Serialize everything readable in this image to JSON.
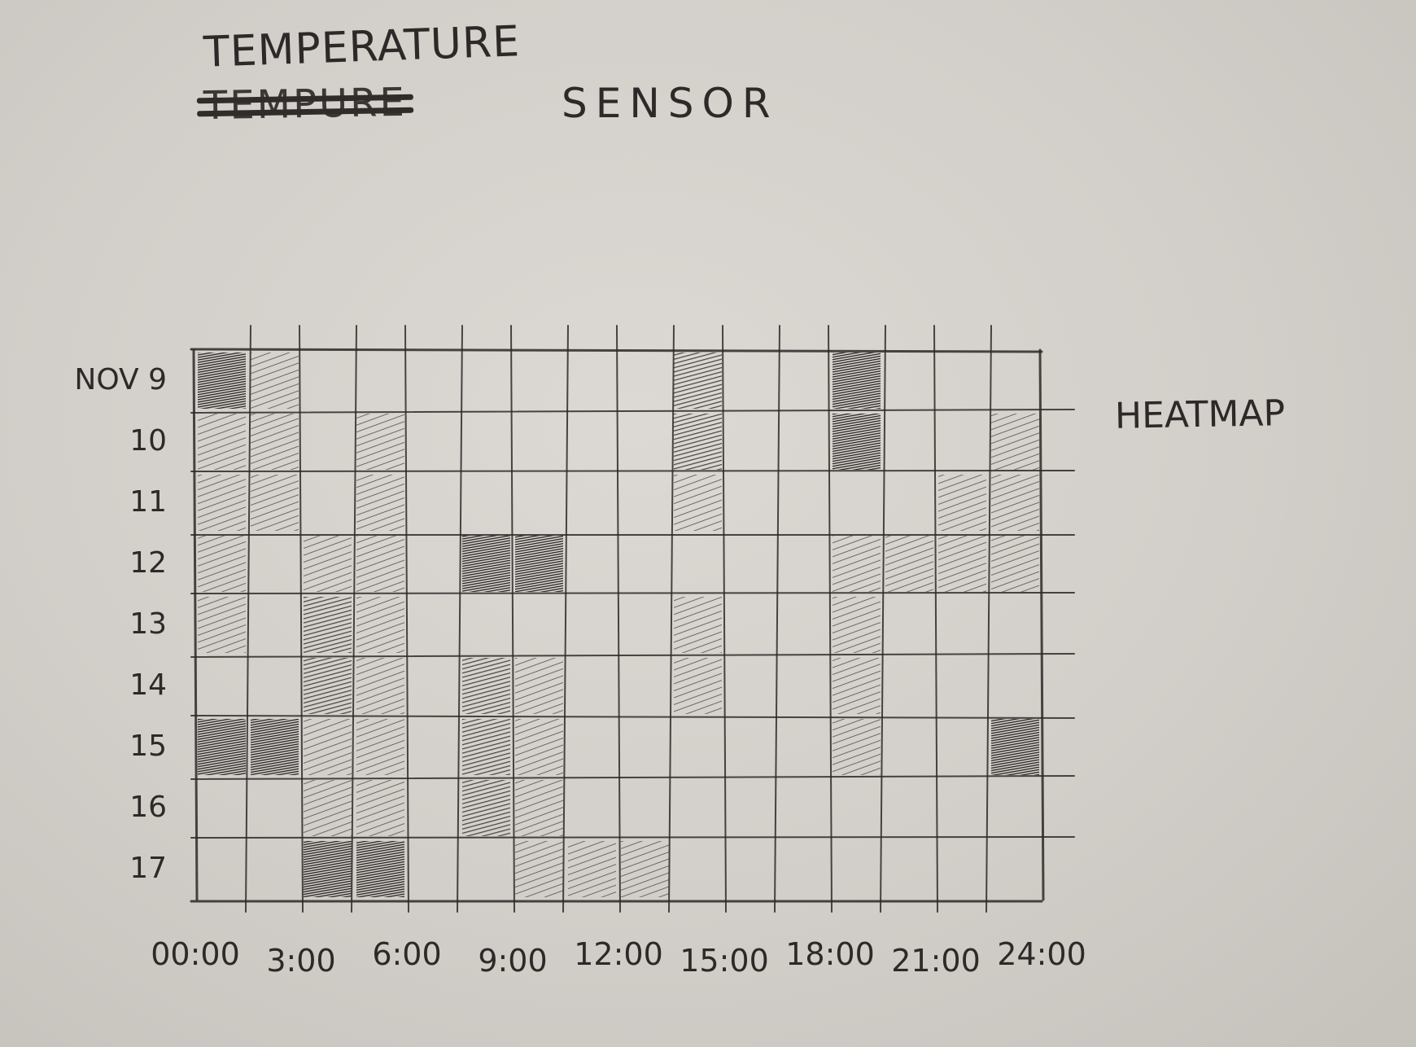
{
  "title": {
    "line1": "TEMPERATURE",
    "struck": "TEMPURE",
    "line2": "SENSOR"
  },
  "side_label": "HEATMAP",
  "colors": {
    "pencil": "#2c2a28",
    "paper": "#d6d3ce"
  },
  "chart_data": {
    "type": "heatmap",
    "title": "TEMPERATURE SENSOR",
    "xlabel": "",
    "ylabel": "",
    "grid": true,
    "y_categories": [
      "NOV 9",
      "10",
      "11",
      "12",
      "13",
      "14",
      "15",
      "16",
      "17"
    ],
    "x_ticks": [
      "00:00",
      "3:00",
      "6:00",
      "9:00",
      "12:00",
      "15:00",
      "18:00",
      "21:00",
      "24:00"
    ],
    "columns_per_day": 16,
    "legend": "none",
    "cells_note_levels": "0 = blank, 1 = light shading, 2 = medium, 3 = dark",
    "matrix": [
      [
        3,
        1,
        0,
        0,
        0,
        0,
        0,
        0,
        0,
        2,
        0,
        0,
        3,
        0,
        0,
        0
      ],
      [
        1,
        1,
        0,
        1,
        0,
        0,
        0,
        0,
        0,
        2,
        0,
        0,
        3,
        0,
        0,
        1
      ],
      [
        1,
        1,
        0,
        1,
        0,
        0,
        0,
        0,
        0,
        1,
        0,
        0,
        0,
        0,
        1,
        1
      ],
      [
        1,
        0,
        1,
        1,
        0,
        3,
        3,
        0,
        0,
        0,
        0,
        0,
        1,
        1,
        1,
        1
      ],
      [
        1,
        0,
        2,
        1,
        0,
        0,
        0,
        0,
        0,
        1,
        0,
        0,
        1,
        0,
        0,
        0
      ],
      [
        0,
        0,
        2,
        1,
        0,
        2,
        1,
        0,
        0,
        1,
        0,
        0,
        1,
        0,
        0,
        0
      ],
      [
        3,
        3,
        1,
        1,
        0,
        2,
        1,
        0,
        0,
        0,
        0,
        0,
        1,
        0,
        0,
        3
      ],
      [
        0,
        0,
        1,
        1,
        0,
        2,
        1,
        0,
        0,
        0,
        0,
        0,
        0,
        0,
        0,
        0
      ],
      [
        0,
        0,
        3,
        3,
        0,
        0,
        1,
        1,
        1,
        0,
        0,
        0,
        0,
        0,
        0,
        0
      ]
    ]
  }
}
